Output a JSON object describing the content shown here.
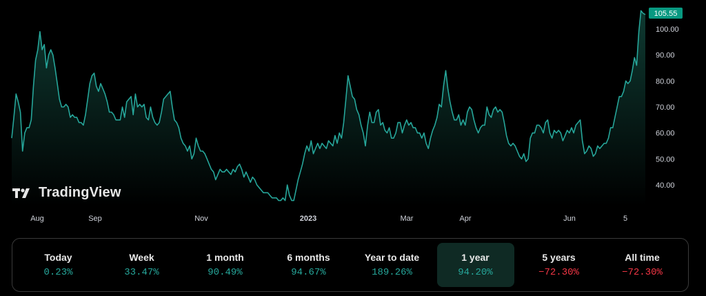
{
  "brand": {
    "name": "TradingView"
  },
  "chart_data": {
    "type": "area",
    "x_ticks": [
      "Aug",
      "Sep",
      "Nov",
      "2023",
      "Mar",
      "Apr",
      "Jun",
      "5"
    ],
    "y_ticks": [
      "40.00",
      "50.00",
      "60.00",
      "70.00",
      "80.00",
      "90.00",
      "100.00"
    ],
    "ylim": [
      35,
      108
    ],
    "last_price": "105.55",
    "colors": {
      "line": "#26a69a",
      "area_top": "#0f3d34",
      "badge": "#089981"
    },
    "values": [
      58,
      66,
      75,
      72,
      68,
      53,
      60,
      62,
      62,
      65,
      78,
      88,
      92,
      99,
      92,
      94,
      85,
      90,
      92,
      90,
      85,
      79,
      73,
      70,
      70,
      71,
      70,
      66,
      67,
      66,
      66,
      64,
      64,
      63,
      67,
      73,
      79,
      82,
      83,
      78,
      76,
      79,
      77,
      75,
      72,
      68,
      68,
      67,
      65,
      65,
      65,
      70,
      66,
      72,
      73,
      74,
      67,
      75,
      70,
      71,
      70,
      71,
      66,
      65,
      70,
      66,
      64,
      63,
      64,
      68,
      73,
      74,
      75,
      76,
      70,
      65,
      64,
      62,
      58,
      56,
      55,
      53,
      55,
      50,
      52,
      58,
      55,
      53,
      53,
      52,
      50,
      48,
      46,
      45,
      42,
      44,
      46,
      45,
      45,
      46,
      45,
      44,
      46,
      45,
      47,
      48,
      46,
      43,
      45,
      43,
      41,
      43,
      42,
      40,
      39,
      38,
      37,
      37,
      37,
      36,
      35,
      35,
      35,
      34,
      34,
      35,
      34,
      40,
      36,
      34,
      34,
      38,
      42,
      45,
      48,
      52,
      55,
      53,
      57,
      52,
      54,
      56,
      54,
      56,
      55,
      54,
      57,
      56,
      55,
      59,
      56,
      60,
      58,
      64,
      73,
      82,
      78,
      74,
      73,
      69,
      67,
      63,
      60,
      55,
      63,
      68,
      64,
      64,
      68,
      69,
      63,
      64,
      61,
      60,
      62,
      58,
      58,
      60,
      64,
      64,
      60,
      63,
      65,
      63,
      64,
      62,
      62,
      60,
      60,
      58,
      60,
      56,
      54,
      58,
      61,
      63,
      66,
      71,
      70,
      78,
      84,
      77,
      72,
      68,
      65,
      65,
      67,
      63,
      65,
      63,
      68,
      70,
      69,
      65,
      62,
      60,
      62,
      63,
      63,
      70,
      67,
      66,
      69,
      70,
      68,
      69,
      68,
      64,
      59,
      56,
      55,
      56,
      55,
      53,
      51,
      50,
      52,
      49,
      50,
      58,
      60,
      60,
      63,
      63,
      62,
      60,
      64,
      65,
      60,
      58,
      61,
      60,
      61,
      60,
      57,
      59,
      61,
      60,
      62,
      60,
      63,
      64,
      65,
      57,
      52,
      53,
      55,
      54,
      51,
      52,
      55,
      54,
      55,
      56,
      56,
      58,
      62,
      62,
      66,
      70,
      74,
      74,
      76,
      80,
      79,
      80,
      84,
      89,
      86,
      99,
      107,
      106,
      105.55
    ]
  },
  "performance": [
    {
      "label": "Today",
      "value": "0.23%",
      "sign": "pos"
    },
    {
      "label": "Week",
      "value": "33.47%",
      "sign": "pos"
    },
    {
      "label": "1 month",
      "value": "90.49%",
      "sign": "pos"
    },
    {
      "label": "6 months",
      "value": "94.67%",
      "sign": "pos"
    },
    {
      "label": "Year to date",
      "value": "189.26%",
      "sign": "pos"
    },
    {
      "label": "1 year",
      "value": "94.20%",
      "sign": "pos",
      "active": true
    },
    {
      "label": "5 years",
      "value": "−72.30%",
      "sign": "neg"
    },
    {
      "label": "All time",
      "value": "−72.30%",
      "sign": "neg"
    }
  ]
}
